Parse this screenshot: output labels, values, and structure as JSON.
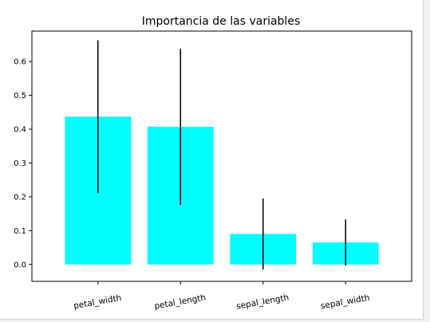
{
  "chart_data": {
    "type": "bar",
    "title": "Importancia de las variables",
    "xlabel": "",
    "ylabel": "",
    "categories": [
      "petal_width",
      "petal_length",
      "sepal_length",
      "sepal_width"
    ],
    "values": [
      0.437,
      0.407,
      0.09,
      0.065
    ],
    "errors": [
      0.226,
      0.231,
      0.105,
      0.068
    ],
    "ylim": [
      -0.05,
      0.69
    ],
    "yticks": [
      "0.0",
      "0.1",
      "0.2",
      "0.3",
      "0.4",
      "0.5",
      "0.6"
    ],
    "ytick_values": [
      0,
      0.1,
      0.2,
      0.3,
      0.4,
      0.5,
      0.6
    ],
    "bar_color": "#00ffff",
    "errorbar_color": "#000000",
    "grid": false,
    "legend": "none"
  }
}
